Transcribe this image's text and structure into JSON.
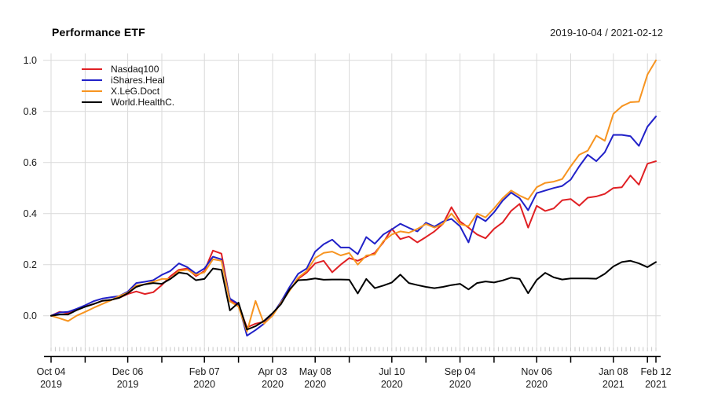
{
  "header": {
    "title": "Performance ETF",
    "date_range": "2019-10-04 / 2021-02-12"
  },
  "chart_data": {
    "type": "line",
    "title": "Performance ETF",
    "subtitle_right": "2019-10-04 / 2021-02-12",
    "xlabel": "",
    "ylabel": "",
    "grid": true,
    "legend_position": "top-left",
    "ylim": [
      -0.15,
      1.05
    ],
    "x_start": "2019-10-04",
    "x_end": "2021-02-12",
    "frequency": "weekly",
    "y_ticks": [
      {
        "value": 0.0,
        "label": "0.0"
      },
      {
        "value": 0.2,
        "label": "0.2"
      },
      {
        "value": 0.4,
        "label": "0.4"
      },
      {
        "value": 0.6,
        "label": "0.6"
      },
      {
        "value": 0.8,
        "label": "0.8"
      },
      {
        "value": 1.0,
        "label": "1.0"
      }
    ],
    "x_axis_ticks": [
      {
        "day": 0,
        "line1": "Oct 04",
        "line2": "2019"
      },
      {
        "day": 28
      },
      {
        "day": 63,
        "line1": "Dec 06",
        "line2": "2019"
      },
      {
        "day": 91
      },
      {
        "day": 126,
        "line1": "Feb 07",
        "line2": "2020"
      },
      {
        "day": 154
      },
      {
        "day": 182,
        "line1": "Apr 03",
        "line2": "2020"
      },
      {
        "day": 217,
        "line1": "May 08",
        "line2": "2020"
      },
      {
        "day": 245
      },
      {
        "day": 280,
        "line1": "Jul 10",
        "line2": "2020"
      },
      {
        "day": 308
      },
      {
        "day": 336,
        "line1": "Sep 04",
        "line2": "2020"
      },
      {
        "day": 364
      },
      {
        "day": 399,
        "line1": "Nov 06",
        "line2": "2020"
      },
      {
        "day": 427
      },
      {
        "day": 462,
        "line1": "Jan 08",
        "line2": "2021"
      },
      {
        "day": 490
      },
      {
        "day": 497,
        "line1": "Feb 12",
        "line2": "2021"
      }
    ],
    "x": [
      "2019-10-04",
      "2019-10-11",
      "2019-10-18",
      "2019-10-25",
      "2019-11-01",
      "2019-11-08",
      "2019-11-15",
      "2019-11-22",
      "2019-11-29",
      "2019-12-06",
      "2019-12-13",
      "2019-12-20",
      "2019-12-27",
      "2020-01-03",
      "2020-01-10",
      "2020-01-17",
      "2020-01-24",
      "2020-01-31",
      "2020-02-07",
      "2020-02-14",
      "2020-02-21",
      "2020-02-28",
      "2020-03-06",
      "2020-03-13",
      "2020-03-20",
      "2020-03-27",
      "2020-04-03",
      "2020-04-10",
      "2020-04-17",
      "2020-04-24",
      "2020-05-01",
      "2020-05-08",
      "2020-05-15",
      "2020-05-22",
      "2020-05-29",
      "2020-06-05",
      "2020-06-12",
      "2020-06-19",
      "2020-06-26",
      "2020-07-03",
      "2020-07-10",
      "2020-07-17",
      "2020-07-24",
      "2020-07-31",
      "2020-08-07",
      "2020-08-14",
      "2020-08-21",
      "2020-08-28",
      "2020-09-04",
      "2020-09-11",
      "2020-09-18",
      "2020-09-25",
      "2020-10-02",
      "2020-10-09",
      "2020-10-16",
      "2020-10-23",
      "2020-10-30",
      "2020-11-06",
      "2020-11-13",
      "2020-11-20",
      "2020-11-27",
      "2020-12-04",
      "2020-12-11",
      "2020-12-18",
      "2020-12-25",
      "2021-01-01",
      "2021-01-08",
      "2021-01-15",
      "2021-01-22",
      "2021-01-29",
      "2021-02-05",
      "2021-02-12"
    ],
    "series": [
      {
        "name": "Nasdaq100",
        "color": "#e02024",
        "values": [
          0.0,
          0.015,
          0.01,
          0.022,
          0.036,
          0.046,
          0.058,
          0.062,
          0.07,
          0.085,
          0.095,
          0.085,
          0.092,
          0.12,
          0.154,
          0.18,
          0.185,
          0.155,
          0.175,
          0.255,
          0.243,
          0.062,
          0.041,
          -0.046,
          -0.031,
          -0.024,
          0.005,
          0.051,
          0.1,
          0.144,
          0.169,
          0.205,
          0.215,
          0.17,
          0.2,
          0.226,
          0.215,
          0.231,
          0.246,
          0.287,
          0.34,
          0.3,
          0.31,
          0.287,
          0.308,
          0.33,
          0.36,
          0.425,
          0.369,
          0.345,
          0.318,
          0.303,
          0.34,
          0.365,
          0.41,
          0.438,
          0.345,
          0.43,
          0.41,
          0.42,
          0.452,
          0.457,
          0.431,
          0.462,
          0.467,
          0.477,
          0.5,
          0.503,
          0.549,
          0.513,
          0.595,
          0.605
        ]
      },
      {
        "name": "iShares.Heal",
        "color": "#2121c8",
        "values": [
          0.0,
          0.013,
          0.015,
          0.027,
          0.041,
          0.057,
          0.067,
          0.072,
          0.077,
          0.094,
          0.128,
          0.133,
          0.139,
          0.16,
          0.175,
          0.205,
          0.19,
          0.165,
          0.185,
          0.231,
          0.221,
          0.067,
          0.046,
          -0.078,
          -0.056,
          -0.031,
          0.005,
          0.055,
          0.113,
          0.164,
          0.185,
          0.251,
          0.28,
          0.298,
          0.267,
          0.267,
          0.241,
          0.308,
          0.282,
          0.318,
          0.338,
          0.36,
          0.344,
          0.33,
          0.364,
          0.349,
          0.369,
          0.379,
          0.35,
          0.287,
          0.39,
          0.37,
          0.405,
          0.45,
          0.482,
          0.46,
          0.413,
          0.48,
          0.49,
          0.5,
          0.508,
          0.533,
          0.585,
          0.63,
          0.605,
          0.64,
          0.708,
          0.708,
          0.703,
          0.665,
          0.74,
          0.78
        ]
      },
      {
        "name": "X.LeG.Doct",
        "color": "#f79420",
        "values": [
          0.0,
          -0.01,
          -0.021,
          0.0,
          0.015,
          0.031,
          0.046,
          0.06,
          0.077,
          0.09,
          0.118,
          0.123,
          0.133,
          0.144,
          0.144,
          0.175,
          0.18,
          0.16,
          0.17,
          0.221,
          0.215,
          0.056,
          0.036,
          -0.062,
          0.058,
          -0.031,
          0.0,
          0.051,
          0.098,
          0.149,
          0.175,
          0.226,
          0.246,
          0.251,
          0.236,
          0.246,
          0.2,
          0.236,
          0.24,
          0.292,
          0.318,
          0.33,
          0.325,
          0.34,
          0.359,
          0.345,
          0.36,
          0.4,
          0.359,
          0.35,
          0.4,
          0.385,
          0.42,
          0.46,
          0.49,
          0.47,
          0.455,
          0.503,
          0.52,
          0.525,
          0.535,
          0.585,
          0.63,
          0.646,
          0.705,
          0.685,
          0.79,
          0.82,
          0.836,
          0.838,
          0.944,
          1.0
        ]
      },
      {
        "name": "World.HealthC.",
        "color": "#000000",
        "values": [
          0.0,
          0.005,
          0.005,
          0.022,
          0.035,
          0.046,
          0.058,
          0.062,
          0.07,
          0.088,
          0.113,
          0.123,
          0.128,
          0.125,
          0.144,
          0.169,
          0.164,
          0.139,
          0.144,
          0.185,
          0.18,
          0.021,
          0.051,
          -0.054,
          -0.041,
          -0.02,
          0.01,
          0.046,
          0.103,
          0.139,
          0.141,
          0.146,
          0.141,
          0.142,
          0.142,
          0.141,
          0.087,
          0.144,
          0.108,
          0.118,
          0.13,
          0.161,
          0.128,
          0.12,
          0.113,
          0.108,
          0.113,
          0.12,
          0.125,
          0.103,
          0.128,
          0.134,
          0.13,
          0.138,
          0.149,
          0.144,
          0.088,
          0.14,
          0.168,
          0.15,
          0.142,
          0.146,
          0.146,
          0.146,
          0.145,
          0.164,
          0.193,
          0.21,
          0.215,
          0.205,
          0.19,
          0.21
        ]
      }
    ],
    "style": {
      "grid_color": "#d9d9d9",
      "axis_color": "#000000",
      "tick_label_color": "#1a1a1a",
      "background": "#ffffff"
    }
  }
}
